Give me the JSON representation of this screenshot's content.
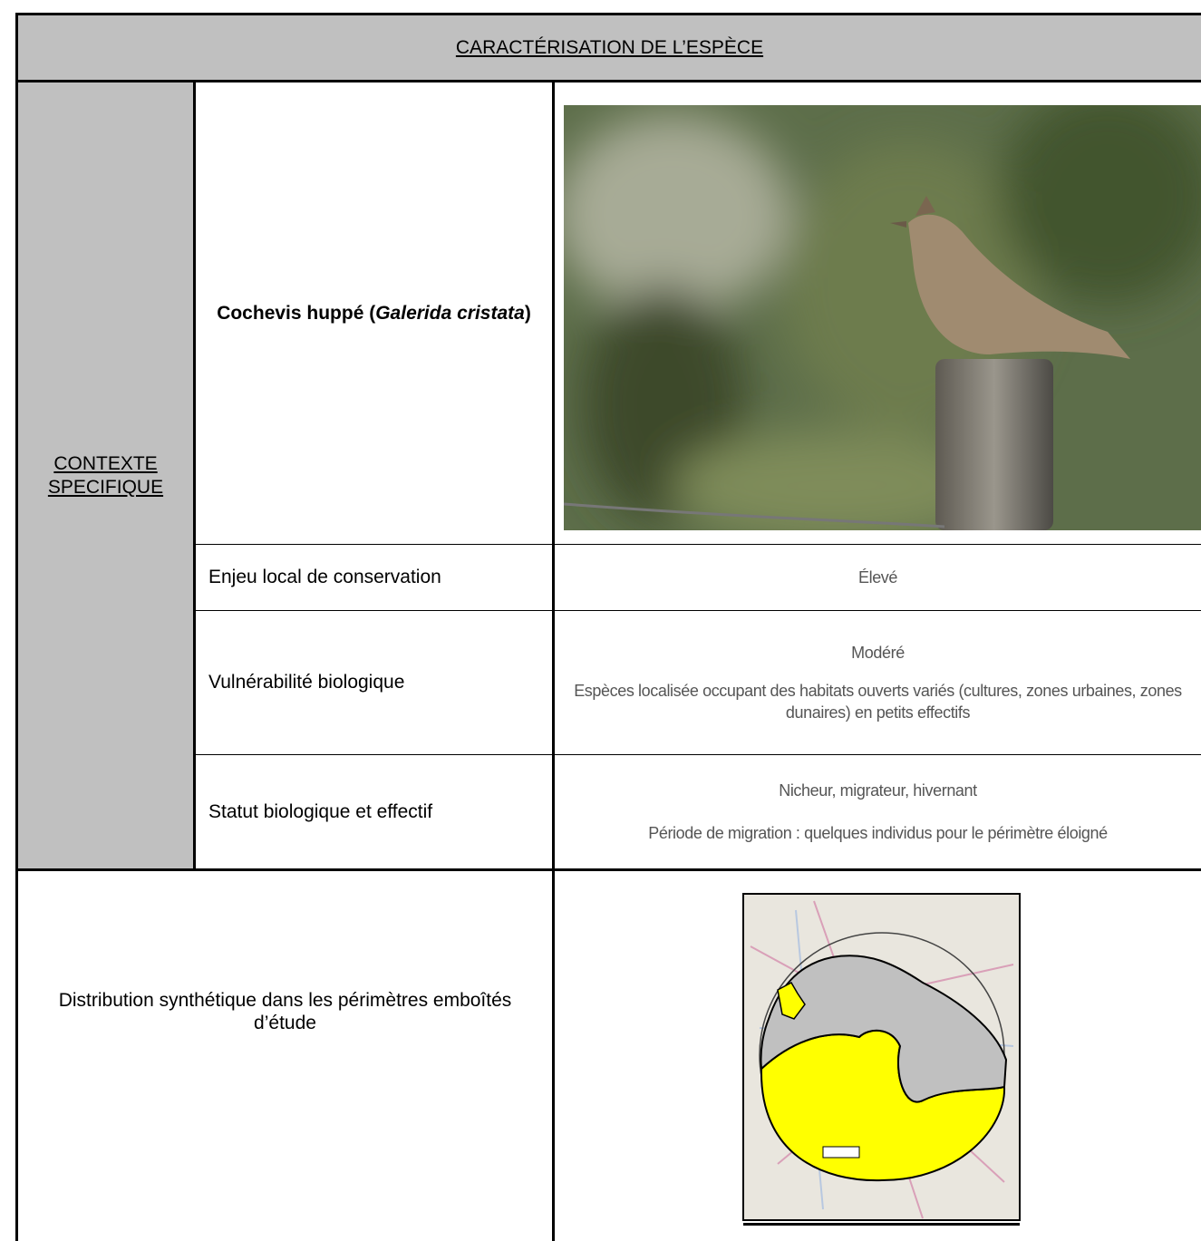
{
  "header": {
    "title": "CARACTÉRISATION DE L’ESPÈCE"
  },
  "section": {
    "label": "CONTEXTE SPECIFIQUE"
  },
  "species": {
    "name_parts": [
      "Cochevis huppé (",
      "Galerida cristata",
      ")"
    ]
  },
  "rows": [
    {
      "label": "Enjeu local de conservation",
      "value": "Élevé"
    },
    {
      "label": "Vulnérabilité biologique",
      "value": "Modéré",
      "detail": "Espèces localisée occupant des habitats ouverts variés (cultures, zones urbaines, zones dunaires) en petits effectifs"
    },
    {
      "label": "Statut biologique et effectif",
      "value": "Nicheur, migrateur, hivernant",
      "detail": "Période de migration : quelques individus pour le périmètre éloigné"
    }
  ],
  "distribution": {
    "label": "Distribution synthétique dans les périmètres emboîtés d’étude"
  }
}
